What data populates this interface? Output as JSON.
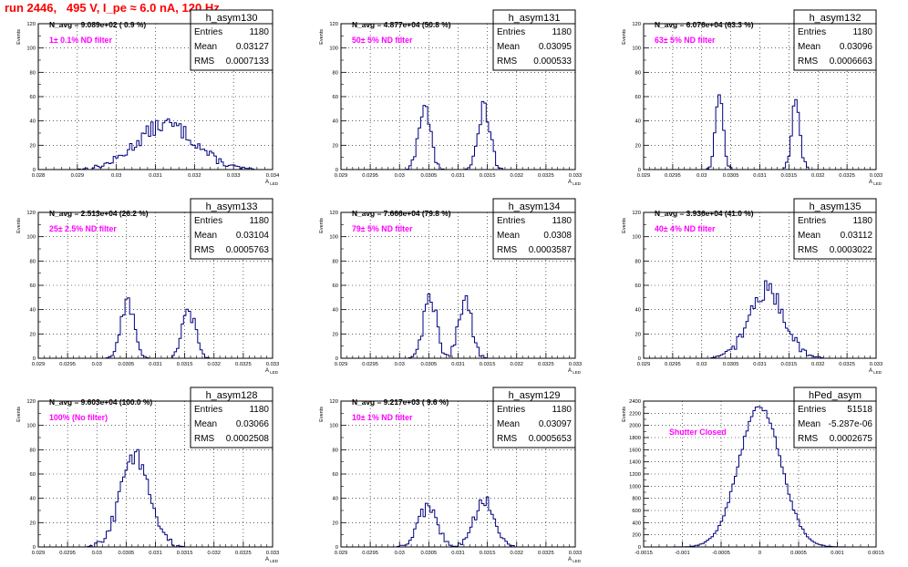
{
  "header": {
    "title": "run 2446,   495 V, I_pe ≈ 6.0 nA, 120 Hz"
  },
  "colors": {
    "histogram": "#00007f",
    "note": "#ff00ff",
    "title": "#ff0000",
    "grid": "#000000"
  },
  "chart_data": [
    {
      "type": "bar",
      "name": "h_asym130",
      "ylabel": "Events",
      "xlabel": "A_LED",
      "navg": "N_avg = 9.089e+02 ( 0.9 %)",
      "note": "1± 0.1% ND filter",
      "stats": [
        [
          "Entries",
          "1180"
        ],
        [
          "Mean",
          "0.03127"
        ],
        [
          "RMS",
          "0.0007133"
        ]
      ],
      "xlim": [
        0.028,
        0.034
      ],
      "ylim": [
        0,
        120
      ],
      "xticks": [
        "0.028",
        "0.029",
        "0.03",
        "0.031",
        "0.032",
        "0.033",
        "0.034"
      ],
      "yticks": [
        "0",
        "20",
        "40",
        "60",
        "80",
        "100",
        "120"
      ],
      "peaks": [
        {
          "mu": 0.03127,
          "sigma": 0.00075,
          "amp": 37
        }
      ]
    },
    {
      "type": "bar",
      "name": "h_asym131",
      "ylabel": "Events",
      "xlabel": "A_LED",
      "navg": "N_avg = 4.877e+04 (50.8 %)",
      "note": "50± 5% ND filter",
      "stats": [
        [
          "Entries",
          "1180"
        ],
        [
          "Mean",
          "0.03095"
        ],
        [
          "RMS",
          "0.000533"
        ]
      ],
      "xlim": [
        0.029,
        0.033
      ],
      "ylim": [
        0,
        120
      ],
      "xticks": [
        "0.029",
        "0.0295",
        "0.03",
        "0.0305",
        "0.031",
        "0.0315",
        "0.032",
        "0.0325",
        "0.033"
      ],
      "yticks": [
        "0",
        "20",
        "40",
        "60",
        "80",
        "100",
        "120"
      ],
      "peaks": [
        {
          "mu": 0.03043,
          "sigma": 0.0001,
          "amp": 52
        },
        {
          "mu": 0.03145,
          "sigma": 0.0001,
          "amp": 52
        }
      ]
    },
    {
      "type": "bar",
      "name": "h_asym132",
      "ylabel": "Events",
      "xlabel": "A_LED",
      "navg": "N_avg = 6.076e+04 (63.3 %)",
      "note": "63± 5% ND filter",
      "stats": [
        [
          "Entries",
          "1180"
        ],
        [
          "Mean",
          "0.03096"
        ],
        [
          "RMS",
          "0.0006663"
        ]
      ],
      "xlim": [
        0.029,
        0.033
      ],
      "ylim": [
        0,
        120
      ],
      "xticks": [
        "0.029",
        "0.0295",
        "0.03",
        "0.0305",
        "0.031",
        "0.0315",
        "0.032",
        "0.0325",
        "0.033"
      ],
      "yticks": [
        "0",
        "20",
        "40",
        "60",
        "80",
        "100",
        "120"
      ],
      "peaks": [
        {
          "mu": 0.0303,
          "sigma": 7e-05,
          "amp": 60
        },
        {
          "mu": 0.03162,
          "sigma": 7e-05,
          "amp": 60
        }
      ]
    },
    {
      "type": "bar",
      "name": "h_asym133",
      "ylabel": "Events",
      "xlabel": "A_LED",
      "navg": "N_avg = 2.513e+04 (26.2 %)",
      "note": "25± 2.5% ND filter",
      "stats": [
        [
          "Entries",
          "1180"
        ],
        [
          "Mean",
          "0.03104"
        ],
        [
          "RMS",
          "0.0005763"
        ]
      ],
      "xlim": [
        0.029,
        0.033
      ],
      "ylim": [
        0,
        120
      ],
      "xticks": [
        "0.029",
        "0.0295",
        "0.03",
        "0.0305",
        "0.031",
        "0.0315",
        "0.032",
        "0.0325",
        "0.033"
      ],
      "yticks": [
        "0",
        "20",
        "40",
        "60",
        "80",
        "100",
        "120"
      ],
      "peaks": [
        {
          "mu": 0.03052,
          "sigma": 0.00011,
          "amp": 48
        },
        {
          "mu": 0.03157,
          "sigma": 0.00011,
          "amp": 38
        }
      ]
    },
    {
      "type": "bar",
      "name": "h_asym134",
      "ylabel": "Events",
      "xlabel": "A_LED",
      "navg": "N_avg = 7.666e+04 (79.8 %)",
      "note": "79± 5% ND filter",
      "stats": [
        [
          "Entries",
          "1180"
        ],
        [
          "Mean",
          "0.0308"
        ],
        [
          "RMS",
          "0.0003587"
        ]
      ],
      "xlim": [
        0.029,
        0.033
      ],
      "ylim": [
        0,
        120
      ],
      "xticks": [
        "0.029",
        "0.0295",
        "0.03",
        "0.0305",
        "0.031",
        "0.0315",
        "0.032",
        "0.0325",
        "0.033"
      ],
      "yticks": [
        "0",
        "20",
        "40",
        "60",
        "80",
        "100",
        "120"
      ],
      "peaks": [
        {
          "mu": 0.03052,
          "sigma": 0.00011,
          "amp": 52
        },
        {
          "mu": 0.03112,
          "sigma": 0.00011,
          "amp": 50
        }
      ]
    },
    {
      "type": "bar",
      "name": "h_asym135",
      "ylabel": "Events",
      "xlabel": "A_LED",
      "navg": "N_avg = 3.936e+04 (41.0 %)",
      "note": "40± 4% ND filter",
      "stats": [
        [
          "Entries",
          "1180"
        ],
        [
          "Mean",
          "0.03112"
        ],
        [
          "RMS",
          "0.0003022"
        ]
      ],
      "xlim": [
        0.029,
        0.033
      ],
      "ylim": [
        0,
        120
      ],
      "xticks": [
        "0.029",
        "0.0295",
        "0.03",
        "0.0305",
        "0.031",
        "0.0315",
        "0.032",
        "0.0325",
        "0.033"
      ],
      "yticks": [
        "0",
        "20",
        "40",
        "60",
        "80",
        "100",
        "120"
      ],
      "peaks": [
        {
          "mu": 0.03112,
          "sigma": 0.0003,
          "amp": 56
        }
      ]
    },
    {
      "type": "bar",
      "name": "h_asym128",
      "ylabel": "Events",
      "xlabel": "A_LED",
      "navg": "N_avg = 9.603e+04 (100.0 %)",
      "note": "100% (No filter)",
      "stats": [
        [
          "Entries",
          "1180"
        ],
        [
          "Mean",
          "0.03066"
        ],
        [
          "RMS",
          "0.0002508"
        ]
      ],
      "xlim": [
        0.029,
        0.033
      ],
      "ylim": [
        0,
        120
      ],
      "xticks": [
        "0.029",
        "0.0295",
        "0.03",
        "0.0305",
        "0.031",
        "0.0315",
        "0.032",
        "0.0325",
        "0.033"
      ],
      "yticks": [
        "0",
        "20",
        "40",
        "60",
        "80",
        "100",
        "120"
      ],
      "peaks": [
        {
          "mu": 0.03066,
          "sigma": 0.00025,
          "amp": 75
        }
      ]
    },
    {
      "type": "bar",
      "name": "h_asym129",
      "ylabel": "Events",
      "xlabel": "A_LED",
      "navg": "N_avg = 9.217e+03 ( 9.6 %)",
      "note": "10± 1% ND filter",
      "stats": [
        [
          "Entries",
          "1180"
        ],
        [
          "Mean",
          "0.03097"
        ],
        [
          "RMS",
          "0.0005653"
        ]
      ],
      "xlim": [
        0.029,
        0.033
      ],
      "ylim": [
        0,
        120
      ],
      "xticks": [
        "0.029",
        "0.0295",
        "0.03",
        "0.0305",
        "0.031",
        "0.0315",
        "0.032",
        "0.0325",
        "0.033"
      ],
      "yticks": [
        "0",
        "20",
        "40",
        "60",
        "80",
        "100",
        "120"
      ],
      "peaks": [
        {
          "mu": 0.03048,
          "sigma": 0.00017,
          "amp": 32
        },
        {
          "mu": 0.03145,
          "sigma": 0.00017,
          "amp": 38
        }
      ]
    },
    {
      "type": "bar",
      "name": "hPed_asym",
      "ylabel": "Events",
      "xlabel": "",
      "navg": "",
      "note": "Shutter Closed",
      "stats": [
        [
          "Entries",
          "51518"
        ],
        [
          "Mean",
          "-5.287e-06"
        ],
        [
          "RMS",
          "0.0002675"
        ]
      ],
      "xlim": [
        -0.0015,
        0.0015
      ],
      "ylim": [
        0,
        2400
      ],
      "xticks": [
        "-0.0015",
        "-0.001",
        "-0.0005",
        "0",
        "0.0005",
        "0.001",
        "0.0015"
      ],
      "yticks": [
        "0",
        "200",
        "400",
        "600",
        "800",
        "1000",
        "1200",
        "1400",
        "1600",
        "1800",
        "2000",
        "2200",
        "2400"
      ],
      "peaks": [
        {
          "mu": 0.0,
          "sigma": 0.00027,
          "amp": 2320
        }
      ]
    }
  ]
}
